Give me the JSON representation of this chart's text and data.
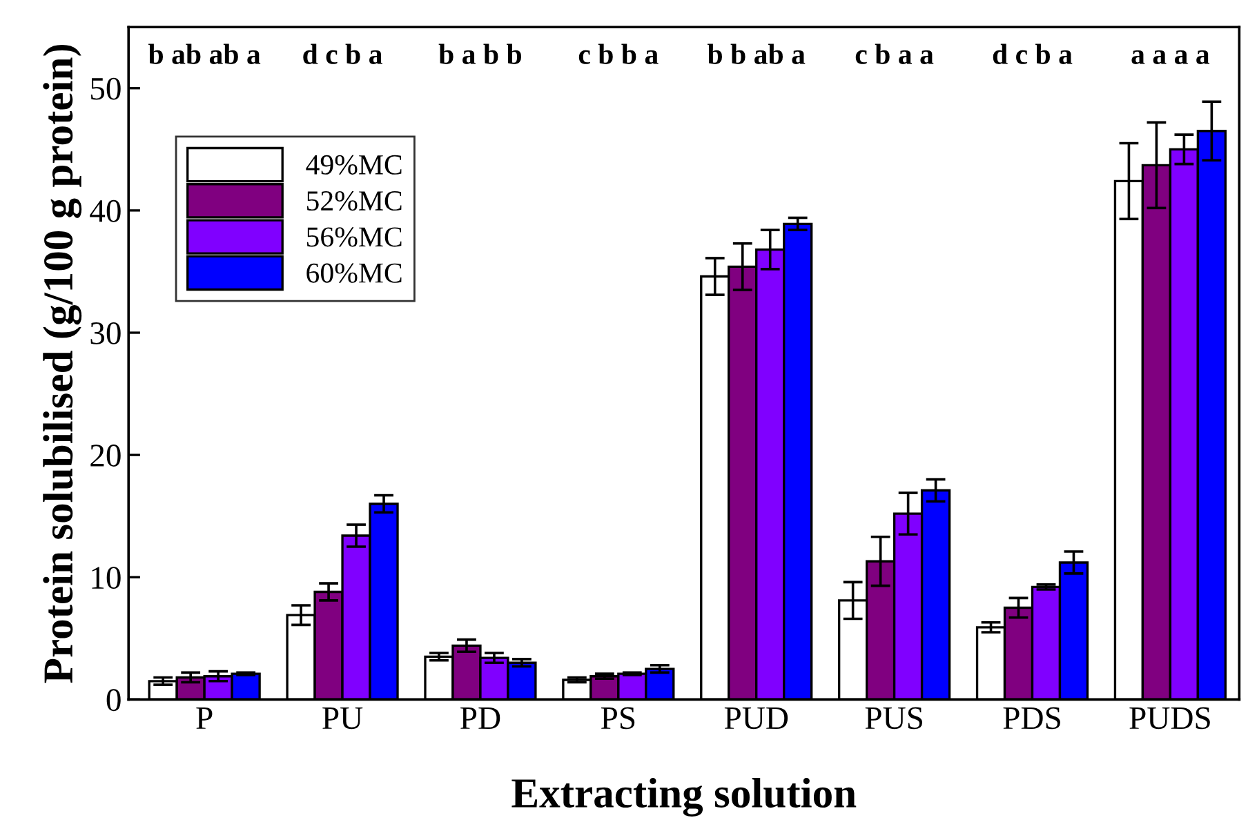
{
  "chart_data": {
    "type": "bar",
    "xlabel": "Extracting solution",
    "ylabel": "Protein solubilised (g/100 g protein)",
    "categories": [
      "P",
      "PU",
      "PD",
      "PS",
      "PUD",
      "PUS",
      "PDS",
      "PUDS"
    ],
    "series": [
      {
        "name": "49%MC",
        "color": "#ffffff",
        "values": [
          1.5,
          6.9,
          3.5,
          1.6,
          34.6,
          8.1,
          5.9,
          42.4
        ],
        "errors": [
          0.3,
          0.8,
          0.3,
          0.2,
          1.5,
          1.5,
          0.4,
          3.1
        ]
      },
      {
        "name": "52%MC",
        "color": "#800080",
        "values": [
          1.8,
          8.8,
          4.4,
          1.9,
          35.4,
          11.3,
          7.5,
          43.7
        ],
        "errors": [
          0.4,
          0.7,
          0.5,
          0.2,
          1.9,
          2.0,
          0.8,
          3.5
        ]
      },
      {
        "name": "56%MC",
        "color": "#8000ff",
        "values": [
          1.9,
          13.4,
          3.4,
          2.1,
          36.8,
          15.2,
          9.2,
          45.0
        ],
        "errors": [
          0.4,
          0.9,
          0.4,
          0.1,
          1.6,
          1.7,
          0.2,
          1.2
        ]
      },
      {
        "name": "60%MC",
        "color": "#0000ff",
        "values": [
          2.1,
          16.0,
          3.0,
          2.5,
          38.9,
          17.1,
          11.2,
          46.5
        ],
        "errors": [
          0.1,
          0.7,
          0.3,
          0.3,
          0.5,
          0.9,
          0.9,
          2.4
        ]
      }
    ],
    "annotations": [
      "b ab ab a",
      "d c b a",
      "b a b b",
      "c b b a",
      "b b ab a",
      "c b a a",
      "d c b a",
      "a a a a"
    ],
    "ylim": [
      0,
      55
    ],
    "yticks": [
      0,
      10,
      20,
      30,
      40,
      50
    ],
    "grid": false,
    "legend": "top left"
  }
}
